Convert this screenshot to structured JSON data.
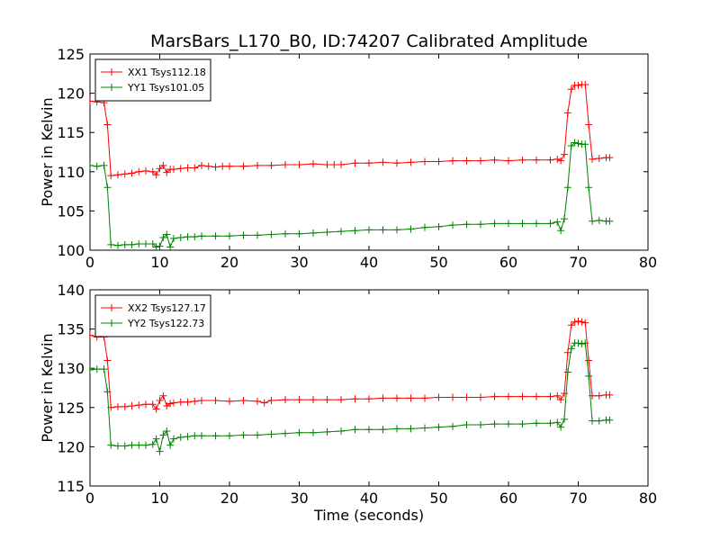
{
  "chart_data": [
    {
      "type": "line",
      "title": "MarsBars_L170_B0, ID:74207 Calibrated Amplitude",
      "xlabel": "",
      "ylabel": "Power in Kelvin",
      "xlim": [
        0,
        80
      ],
      "ylim": [
        100,
        125
      ],
      "xticks": [
        0,
        10,
        20,
        30,
        40,
        50,
        60,
        70,
        80
      ],
      "yticks": [
        100,
        105,
        110,
        115,
        120,
        125
      ],
      "grid": false,
      "legend_position": "top-left",
      "series": [
        {
          "name": "XX1 Tsys112.18",
          "color": "#ff0000",
          "points": [
            [
              0,
              119.0
            ],
            [
              1,
              118.9
            ],
            [
              2,
              118.8
            ],
            [
              2.5,
              116.0
            ],
            [
              3,
              109.5
            ],
            [
              4,
              109.6
            ],
            [
              5,
              109.7
            ],
            [
              6,
              109.8
            ],
            [
              7,
              110.0
            ],
            [
              8,
              110.1
            ],
            [
              9,
              110.0
            ],
            [
              9.5,
              109.6
            ],
            [
              10,
              110.4
            ],
            [
              10.5,
              110.8
            ],
            [
              11,
              109.9
            ],
            [
              11.5,
              110.3
            ],
            [
              12,
              110.3
            ],
            [
              13,
              110.4
            ],
            [
              14,
              110.5
            ],
            [
              15,
              110.5
            ],
            [
              16,
              110.8
            ],
            [
              17,
              110.7
            ],
            [
              18,
              110.6
            ],
            [
              19,
              110.7
            ],
            [
              20,
              110.7
            ],
            [
              22,
              110.7
            ],
            [
              24,
              110.8
            ],
            [
              26,
              110.8
            ],
            [
              28,
              110.9
            ],
            [
              30,
              110.9
            ],
            [
              32,
              111.0
            ],
            [
              34,
              110.9
            ],
            [
              35,
              110.9
            ],
            [
              36,
              110.9
            ],
            [
              38,
              111.1
            ],
            [
              40,
              111.1
            ],
            [
              42,
              111.2
            ],
            [
              44,
              111.1
            ],
            [
              46,
              111.2
            ],
            [
              48,
              111.3
            ],
            [
              50,
              111.3
            ],
            [
              52,
              111.4
            ],
            [
              54,
              111.4
            ],
            [
              56,
              111.4
            ],
            [
              58,
              111.5
            ],
            [
              60,
              111.4
            ],
            [
              62,
              111.5
            ],
            [
              64,
              111.5
            ],
            [
              66,
              111.5
            ],
            [
              67,
              111.6
            ],
            [
              67.5,
              111.4
            ],
            [
              68,
              112.2
            ],
            [
              68.5,
              117.5
            ],
            [
              69,
              120.5
            ],
            [
              69.5,
              121.0
            ],
            [
              70,
              121.0
            ],
            [
              70.5,
              121.1
            ],
            [
              71,
              121.1
            ],
            [
              71.5,
              116.0
            ],
            [
              72,
              111.6
            ],
            [
              73,
              111.7
            ],
            [
              74,
              111.8
            ],
            [
              74.5,
              111.8
            ]
          ]
        },
        {
          "name": "YY1 Tsys101.05",
          "color": "#008000",
          "points": [
            [
              0,
              110.8
            ],
            [
              1,
              110.7
            ],
            [
              2,
              110.8
            ],
            [
              2.5,
              108.0
            ],
            [
              3,
              100.7
            ],
            [
              4,
              100.6
            ],
            [
              5,
              100.7
            ],
            [
              6,
              100.7
            ],
            [
              7,
              100.8
            ],
            [
              8,
              100.8
            ],
            [
              9,
              100.8
            ],
            [
              9.5,
              100.4
            ],
            [
              10,
              100.5
            ],
            [
              10.5,
              101.6
            ],
            [
              11,
              102.0
            ],
            [
              11.5,
              100.4
            ],
            [
              12,
              101.5
            ],
            [
              13,
              101.6
            ],
            [
              14,
              101.7
            ],
            [
              15,
              101.7
            ],
            [
              16,
              101.8
            ],
            [
              18,
              101.8
            ],
            [
              20,
              101.8
            ],
            [
              22,
              101.9
            ],
            [
              24,
              101.9
            ],
            [
              26,
              102.0
            ],
            [
              28,
              102.1
            ],
            [
              30,
              102.1
            ],
            [
              32,
              102.2
            ],
            [
              34,
              102.3
            ],
            [
              36,
              102.4
            ],
            [
              38,
              102.5
            ],
            [
              40,
              102.6
            ],
            [
              42,
              102.6
            ],
            [
              44,
              102.6
            ],
            [
              46,
              102.7
            ],
            [
              48,
              102.9
            ],
            [
              50,
              103.0
            ],
            [
              52,
              103.2
            ],
            [
              54,
              103.3
            ],
            [
              56,
              103.3
            ],
            [
              58,
              103.4
            ],
            [
              60,
              103.4
            ],
            [
              62,
              103.4
            ],
            [
              64,
              103.4
            ],
            [
              66,
              103.4
            ],
            [
              67,
              103.6
            ],
            [
              67.5,
              102.5
            ],
            [
              68,
              104.0
            ],
            [
              68.5,
              108.0
            ],
            [
              69,
              113.3
            ],
            [
              69.5,
              113.7
            ],
            [
              70,
              113.6
            ],
            [
              70.5,
              113.5
            ],
            [
              71,
              113.5
            ],
            [
              71.5,
              108.0
            ],
            [
              72,
              103.7
            ],
            [
              73,
              103.8
            ],
            [
              74,
              103.7
            ],
            [
              74.5,
              103.7
            ]
          ]
        }
      ]
    },
    {
      "type": "line",
      "title": "",
      "xlabel": "Time (seconds)",
      "ylabel": "Power in Kelvin",
      "xlim": [
        0,
        80
      ],
      "ylim": [
        115,
        140
      ],
      "xticks": [
        0,
        10,
        20,
        30,
        40,
        50,
        60,
        70,
        80
      ],
      "yticks": [
        115,
        120,
        125,
        130,
        135,
        140
      ],
      "grid": false,
      "legend_position": "top-left",
      "series": [
        {
          "name": "XX2 Tsys127.17",
          "color": "#ff0000",
          "points": [
            [
              0,
              134.2
            ],
            [
              1,
              134.0
            ],
            [
              2,
              134.0
            ],
            [
              2.5,
              131.0
            ],
            [
              3,
              125.0
            ],
            [
              4,
              125.1
            ],
            [
              5,
              125.1
            ],
            [
              6,
              125.2
            ],
            [
              7,
              125.3
            ],
            [
              8,
              125.4
            ],
            [
              9,
              125.4
            ],
            [
              9.5,
              124.8
            ],
            [
              10,
              125.9
            ],
            [
              10.5,
              126.5
            ],
            [
              11,
              125.2
            ],
            [
              11.5,
              125.5
            ],
            [
              12,
              125.6
            ],
            [
              13,
              125.7
            ],
            [
              14,
              125.7
            ],
            [
              15,
              125.8
            ],
            [
              16,
              125.9
            ],
            [
              18,
              125.9
            ],
            [
              20,
              125.8
            ],
            [
              22,
              125.9
            ],
            [
              24,
              125.8
            ],
            [
              25,
              125.6
            ],
            [
              26,
              125.9
            ],
            [
              28,
              126.0
            ],
            [
              30,
              126.0
            ],
            [
              32,
              126.0
            ],
            [
              34,
              126.0
            ],
            [
              36,
              126.0
            ],
            [
              38,
              126.1
            ],
            [
              40,
              126.1
            ],
            [
              42,
              126.2
            ],
            [
              44,
              126.2
            ],
            [
              46,
              126.2
            ],
            [
              48,
              126.2
            ],
            [
              50,
              126.3
            ],
            [
              52,
              126.3
            ],
            [
              54,
              126.3
            ],
            [
              56,
              126.3
            ],
            [
              58,
              126.4
            ],
            [
              60,
              126.4
            ],
            [
              62,
              126.4
            ],
            [
              64,
              126.4
            ],
            [
              66,
              126.4
            ],
            [
              67,
              126.5
            ],
            [
              67.5,
              126.0
            ],
            [
              68,
              126.8
            ],
            [
              68.5,
              132.0
            ],
            [
              69,
              135.5
            ],
            [
              69.5,
              135.9
            ],
            [
              70,
              136.0
            ],
            [
              70.5,
              135.9
            ],
            [
              71,
              135.8
            ],
            [
              71.5,
              131.0
            ],
            [
              72,
              126.5
            ],
            [
              73,
              126.5
            ],
            [
              74,
              126.6
            ],
            [
              74.5,
              126.6
            ]
          ]
        },
        {
          "name": "YY2 Tsys122.73",
          "color": "#008000",
          "points": [
            [
              0,
              129.8
            ],
            [
              1,
              129.9
            ],
            [
              2,
              129.9
            ],
            [
              2.5,
              127.0
            ],
            [
              3,
              120.2
            ],
            [
              4,
              120.1
            ],
            [
              5,
              120.1
            ],
            [
              6,
              120.2
            ],
            [
              7,
              120.2
            ],
            [
              8,
              120.2
            ],
            [
              9,
              120.3
            ],
            [
              9.5,
              121.0
            ],
            [
              10,
              119.4
            ],
            [
              10.5,
              121.5
            ],
            [
              11,
              122.0
            ],
            [
              11.5,
              120.2
            ],
            [
              12,
              121.0
            ],
            [
              13,
              121.2
            ],
            [
              14,
              121.3
            ],
            [
              15,
              121.4
            ],
            [
              16,
              121.4
            ],
            [
              18,
              121.4
            ],
            [
              20,
              121.4
            ],
            [
              22,
              121.5
            ],
            [
              24,
              121.5
            ],
            [
              26,
              121.6
            ],
            [
              28,
              121.7
            ],
            [
              30,
              121.8
            ],
            [
              32,
              121.8
            ],
            [
              34,
              121.9
            ],
            [
              36,
              122.0
            ],
            [
              38,
              122.2
            ],
            [
              40,
              122.2
            ],
            [
              42,
              122.2
            ],
            [
              44,
              122.3
            ],
            [
              46,
              122.3
            ],
            [
              48,
              122.4
            ],
            [
              50,
              122.5
            ],
            [
              52,
              122.6
            ],
            [
              54,
              122.8
            ],
            [
              56,
              122.8
            ],
            [
              58,
              122.9
            ],
            [
              60,
              122.9
            ],
            [
              62,
              122.9
            ],
            [
              64,
              123.0
            ],
            [
              66,
              123.0
            ],
            [
              67,
              123.1
            ],
            [
              67.5,
              122.5
            ],
            [
              68,
              123.5
            ],
            [
              68.5,
              129.5
            ],
            [
              69,
              132.5
            ],
            [
              69.5,
              133.2
            ],
            [
              70,
              133.2
            ],
            [
              70.5,
              133.1
            ],
            [
              71,
              133.2
            ],
            [
              71.5,
              129.0
            ],
            [
              72,
              123.3
            ],
            [
              73,
              123.3
            ],
            [
              74,
              123.4
            ],
            [
              74.5,
              123.4
            ]
          ]
        }
      ]
    }
  ]
}
